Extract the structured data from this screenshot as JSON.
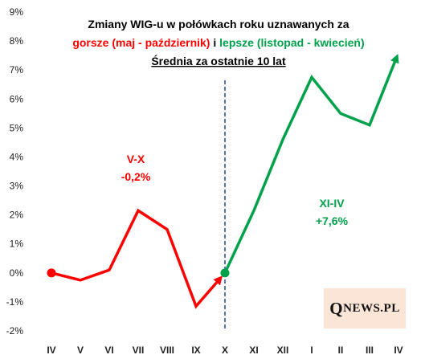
{
  "chart_data": {
    "type": "line",
    "title_lines": [
      {
        "segments": [
          {
            "text": "Zmiany WIG-u w połówkach  roku uznawanych za",
            "color": "#000000"
          }
        ]
      },
      {
        "segments": [
          {
            "text": "gorsze (maj - październik)",
            "color": "#ff0000"
          },
          {
            "text": " i ",
            "color": "#000000"
          },
          {
            "text": "lepsze (listopad - kwiecień)",
            "color": "#00a14b"
          }
        ]
      },
      {
        "segments": [
          {
            "text": "Średnia za ostatnie 10 lat",
            "color": "#000000",
            "underline": true
          }
        ]
      }
    ],
    "categories": [
      "IV",
      "V",
      "VI",
      "VII",
      "VIII",
      "IX",
      "X",
      "XI",
      "XII",
      "I",
      "II",
      "III",
      "IV"
    ],
    "ylim": [
      -2,
      9
    ],
    "yticks": [
      -2,
      -1,
      0,
      1,
      2,
      3,
      4,
      5,
      6,
      7,
      8,
      9
    ],
    "ytick_labels": [
      "-2%",
      "-1%",
      "0%",
      "1%",
      "2%",
      "3%",
      "4%",
      "5%",
      "6%",
      "7%",
      "8%",
      "9%"
    ],
    "grid": false,
    "series": [
      {
        "color": "#ff0000",
        "values": [
          0.0,
          -0.25,
          0.1,
          2.15,
          1.5,
          -1.15,
          0.0,
          null,
          null,
          null,
          null,
          null,
          null
        ]
      },
      {
        "color": "#00a14b",
        "values": [
          null,
          null,
          null,
          null,
          null,
          null,
          0.0,
          2.15,
          4.6,
          6.75,
          5.5,
          5.1,
          7.6
        ]
      }
    ],
    "divider_at": "X",
    "annotations": [
      {
        "lines": [
          "V-X",
          "-0,2%"
        ],
        "color": "#ff0000"
      },
      {
        "lines": [
          "XI-IV",
          "+7,6%"
        ],
        "color": "#00a14b"
      }
    ],
    "logo": {
      "q": "Q",
      "rest": "NEWS.PL"
    }
  }
}
